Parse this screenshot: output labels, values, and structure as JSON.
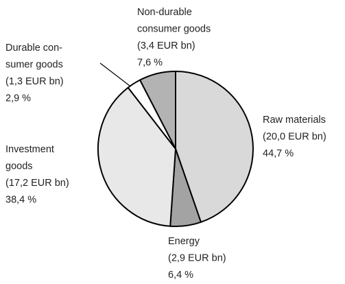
{
  "chart_data": {
    "type": "pie",
    "categories": [
      [
        "Raw materials"
      ],
      [
        "Energy"
      ],
      [
        "Investment",
        "goods"
      ],
      [
        "Durable con-",
        "sumer goods"
      ],
      [
        "Non-durable",
        "consumer goods"
      ]
    ],
    "amount_labels": [
      "(20,0 EUR bn)",
      "(2,9 EUR bn)",
      "(17,2 EUR bn)",
      "(1,3 EUR bn)",
      "(3,4 EUR bn)"
    ],
    "values": [
      44.7,
      6.4,
      38.4,
      2.9,
      7.6
    ],
    "value_labels": [
      "44,7 %",
      "6,4 %",
      "38,4 %",
      "2,9 %",
      "7,6 %"
    ],
    "colors": [
      "#d9d9d9",
      "#a3a3a3",
      "#e8e8e8",
      "#ffffff",
      "#b3b3b3"
    ]
  }
}
